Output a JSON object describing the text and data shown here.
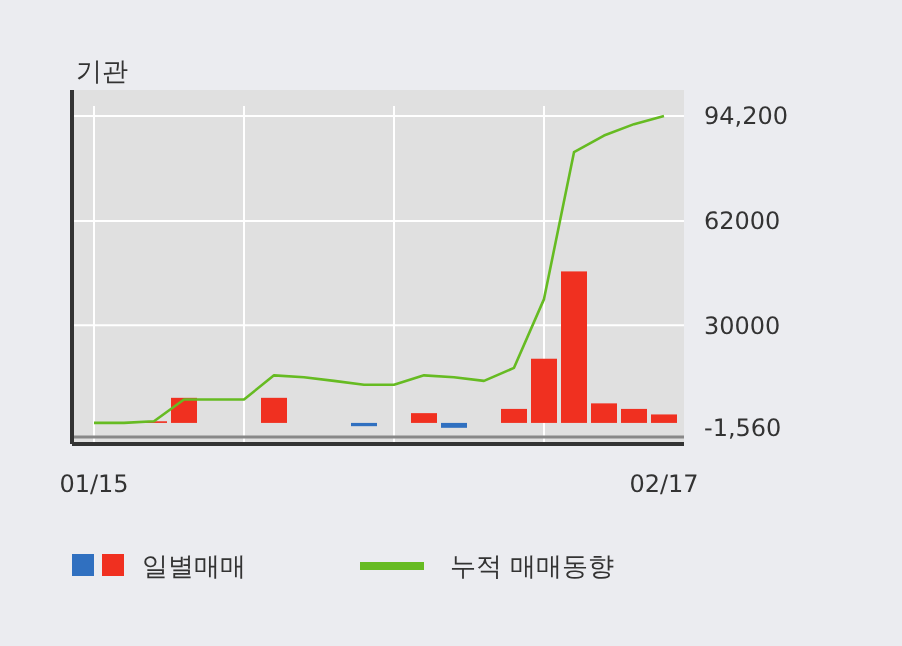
{
  "chart_data": {
    "type": "bar",
    "title": "기관",
    "categories": [
      "01/15",
      null,
      null,
      null,
      null,
      null,
      null,
      null,
      null,
      null,
      null,
      null,
      null,
      null,
      null,
      null,
      null,
      null,
      null,
      "02/17"
    ],
    "series": [
      {
        "name": "일별매매",
        "colors": [
          "#f03020",
          "#f03020",
          "#f03020",
          "#f03020",
          "#f03020",
          "#f03020",
          "#f03020",
          "#f03020",
          "#f03020",
          "#3070c0",
          "#f03020",
          "#f03020",
          "#3070c0",
          "#f03020",
          "#f03020",
          "#f03020",
          "#f03020",
          "#f03020",
          "#f03020",
          "#f03020"
        ],
        "values": [
          null,
          null,
          500,
          7700,
          null,
          null,
          7700,
          null,
          null,
          -1000,
          null,
          3000,
          -1500,
          null,
          4300,
          19700,
          46500,
          6000,
          4300,
          2600
        ]
      },
      {
        "type": "line",
        "name": "누적 매매동향",
        "color": "#66bb22",
        "values": [
          0,
          0,
          500,
          7200,
          7200,
          7200,
          14600,
          14000,
          12900,
          11700,
          11700,
          14600,
          14000,
          12900,
          16900,
          38000,
          83100,
          88200,
          91700,
          94200
        ]
      }
    ],
    "ylim": [
      -1560,
      94200
    ],
    "yticks": [
      {
        "value": -1560,
        "label": "-1,560"
      },
      30000,
      62000,
      {
        "value": 94200,
        "label": "94,200"
      }
    ],
    "grid": true,
    "legend": "bottom"
  }
}
